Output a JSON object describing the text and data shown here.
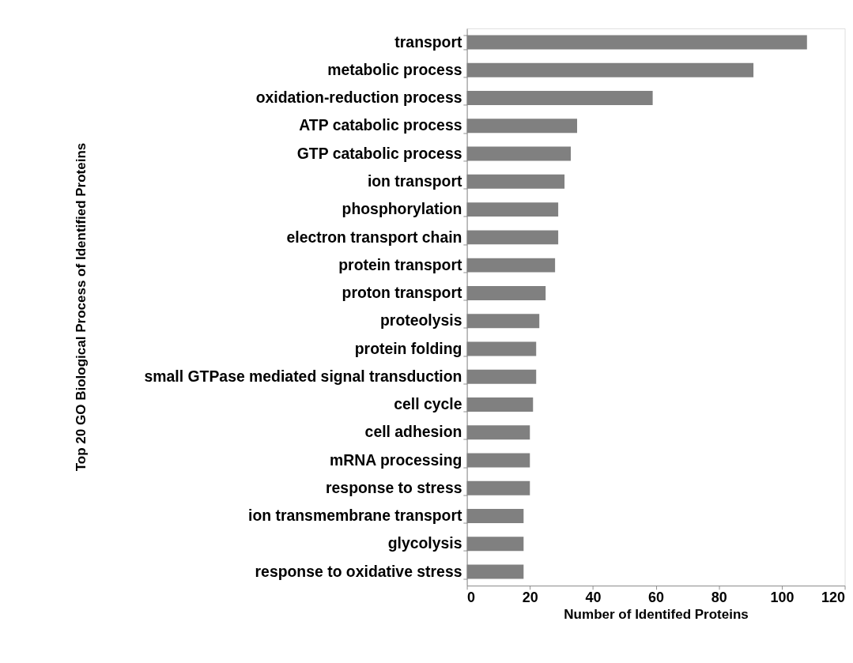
{
  "chart_data": {
    "type": "bar",
    "orientation": "horizontal",
    "xlabel": "Number of Identifed Proteins",
    "ylabel": "Top 20 GO Biological Process of Identified Proteins",
    "categories": [
      "transport",
      "metabolic process",
      "oxidation-reduction process",
      "ATP catabolic process",
      "GTP catabolic process",
      "ion transport",
      "phosphorylation",
      "electron transport chain",
      "protein transport",
      "proton transport",
      "proteolysis",
      "protein folding",
      "small GTPase mediated signal transduction",
      "cell cycle",
      "cell adhesion",
      "mRNA processing",
      "response to stress",
      "ion transmembrane transport",
      "glycolysis",
      "response to oxidative stress"
    ],
    "values": [
      108,
      91,
      59,
      35,
      33,
      31,
      29,
      29,
      28,
      25,
      23,
      22,
      22,
      21,
      20,
      20,
      20,
      18,
      18,
      18
    ],
    "color": "#808080",
    "xlim": [
      0,
      120
    ],
    "xticks": [
      0,
      20,
      40,
      60,
      80,
      100,
      120
    ],
    "grid": false
  }
}
